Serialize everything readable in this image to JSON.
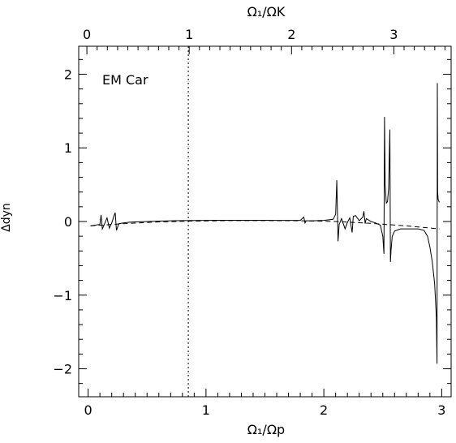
{
  "chart_data": {
    "type": "line",
    "annotation": "EM Car",
    "xlabel_bottom": "Ω₁/Ωp",
    "xlabel_top": "Ω₁/ΩK",
    "ylabel": "Δdyn",
    "xlim_bottom": [
      -0.08,
      3.08
    ],
    "xlim_top": [
      -0.08,
      3.56
    ],
    "ylim": [
      -2.38,
      2.38
    ],
    "x_ticks_bottom": [
      0,
      1,
      2,
      3
    ],
    "x_ticks_top": [
      0,
      1,
      2,
      3
    ],
    "y_ticks": [
      -2,
      -1,
      0,
      1,
      2
    ],
    "vertical_reference_line_x": 0.85,
    "series": [
      {
        "style": "dashed",
        "x": [
          0.02,
          0.3,
          0.6,
          0.9,
          1.2,
          1.5,
          1.8,
          2.1,
          2.4,
          2.7,
          2.98
        ],
        "y": [
          -0.06,
          -0.03,
          -0.005,
          0.005,
          0.012,
          0.012,
          0.01,
          0.0,
          -0.025,
          -0.06,
          -0.1
        ]
      },
      {
        "style": "solid",
        "x": [
          0.02,
          0.1,
          0.11,
          0.12,
          0.14,
          0.16,
          0.18,
          0.2,
          0.22,
          0.23,
          0.24,
          0.26,
          0.3,
          0.35,
          0.4,
          0.5,
          0.6,
          0.7,
          0.8,
          0.9,
          1.0,
          1.1,
          1.2,
          1.3,
          1.4,
          1.5,
          1.6,
          1.7,
          1.8,
          1.83,
          1.84,
          1.85,
          1.9,
          2.0,
          2.08,
          2.1,
          2.11,
          2.12,
          2.13,
          2.15,
          2.18,
          2.2,
          2.22,
          2.24,
          2.25,
          2.27,
          2.3,
          2.33,
          2.34,
          2.35,
          2.36,
          2.4,
          2.44,
          2.48,
          2.5,
          2.51,
          2.515,
          2.52,
          2.53,
          2.54,
          2.55,
          2.56,
          2.565,
          2.57,
          2.58,
          2.6,
          2.65,
          2.7,
          2.75,
          2.8,
          2.85,
          2.88,
          2.9,
          2.92,
          2.94,
          2.955,
          2.96,
          2.963,
          2.966,
          2.97,
          2.975,
          2.98
        ],
        "y": [
          -0.06,
          -0.04,
          0.09,
          -0.1,
          -0.03,
          0.05,
          -0.09,
          -0.02,
          0.08,
          0.12,
          -0.12,
          -0.03,
          -0.02,
          -0.01,
          -0.005,
          0.0,
          0.005,
          0.01,
          0.012,
          0.014,
          0.015,
          0.016,
          0.017,
          0.017,
          0.016,
          0.016,
          0.015,
          0.015,
          0.015,
          0.06,
          -0.02,
          0.01,
          0.01,
          0.015,
          0.03,
          0.1,
          0.56,
          -0.27,
          -0.04,
          0.04,
          -0.1,
          -0.01,
          0.05,
          -0.15,
          0.07,
          0.08,
          0.01,
          0.06,
          0.14,
          -0.03,
          0.04,
          0.0,
          -0.02,
          -0.05,
          -0.2,
          -0.44,
          1.42,
          0.5,
          0.25,
          0.27,
          0.45,
          1.25,
          -0.55,
          -0.4,
          -0.2,
          -0.13,
          -0.1,
          -0.1,
          -0.1,
          -0.1,
          -0.12,
          -0.2,
          -0.35,
          -0.55,
          -0.85,
          -1.3,
          -1.93,
          1.88,
          0.4,
          0.3,
          0.28,
          0.26
        ]
      }
    ]
  }
}
